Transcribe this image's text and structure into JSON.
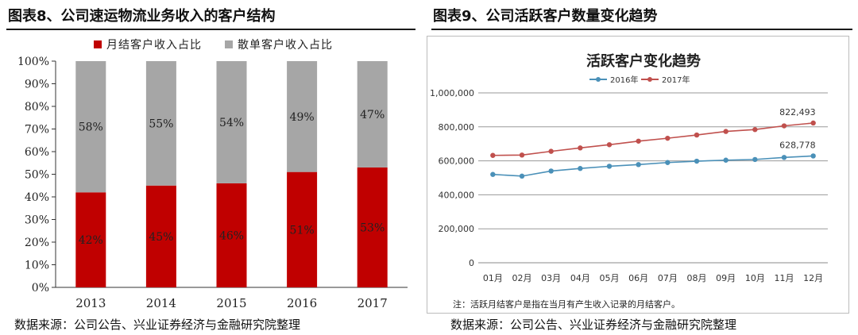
{
  "left_panel": {
    "figure_title": "图表8、公司速运物流业务收入的客户结构",
    "source": "数据来源：公司公告、兴业证券经济与金融研究院整理"
  },
  "right_panel": {
    "figure_title": "图表9、公司活跃客户数量变化趋势",
    "note": "注：活跃月结客户是指在当月有产生收入记录的月结客户。",
    "source": "数据来源：公司公告、兴业证券经济与金融研究院整理"
  },
  "chart_data": [
    {
      "type": "bar",
      "stacked": true,
      "percent": true,
      "title": "",
      "categories": [
        "2013",
        "2014",
        "2015",
        "2016",
        "2017"
      ],
      "series": [
        {
          "name": "月结客户收入占比",
          "color": "#c00000",
          "values": [
            42,
            45,
            46,
            51,
            53
          ],
          "labels": [
            "42%",
            "45%",
            "46%",
            "51%",
            "53%"
          ]
        },
        {
          "name": "散单客户收入占比",
          "color": "#a6a6a6",
          "values": [
            58,
            55,
            54,
            49,
            47
          ],
          "labels": [
            "58%",
            "55%",
            "54%",
            "49%",
            "47%"
          ]
        }
      ],
      "y_ticks": [
        "0%",
        "10%",
        "20%",
        "30%",
        "40%",
        "50%",
        "60%",
        "70%",
        "80%",
        "90%",
        "100%"
      ],
      "ylim": [
        0,
        100
      ],
      "legend_position": "top"
    },
    {
      "type": "line",
      "title": "活跃客户变化趋势",
      "categories": [
        "01月",
        "02月",
        "03月",
        "04月",
        "05月",
        "06月",
        "07月",
        "08月",
        "09月",
        "10月",
        "11月",
        "12月"
      ],
      "series": [
        {
          "name": "2016年",
          "color": "#4a90b8",
          "values": [
            520000,
            510000,
            540000,
            555000,
            568000,
            578000,
            590000,
            598000,
            604000,
            608000,
            620000,
            628778
          ]
        },
        {
          "name": "2017年",
          "color": "#c0504d",
          "values": [
            632000,
            634000,
            656000,
            676000,
            695000,
            716000,
            733000,
            752000,
            773000,
            784000,
            806000,
            822493
          ]
        }
      ],
      "annotations": [
        "822,493",
        "628,778"
      ],
      "y_ticks": [
        "0",
        "200,000",
        "400,000",
        "600,000",
        "800,000",
        "1,000,000"
      ],
      "ylim": [
        0,
        1000000
      ],
      "grid": true,
      "legend_position": "top-left"
    }
  ]
}
